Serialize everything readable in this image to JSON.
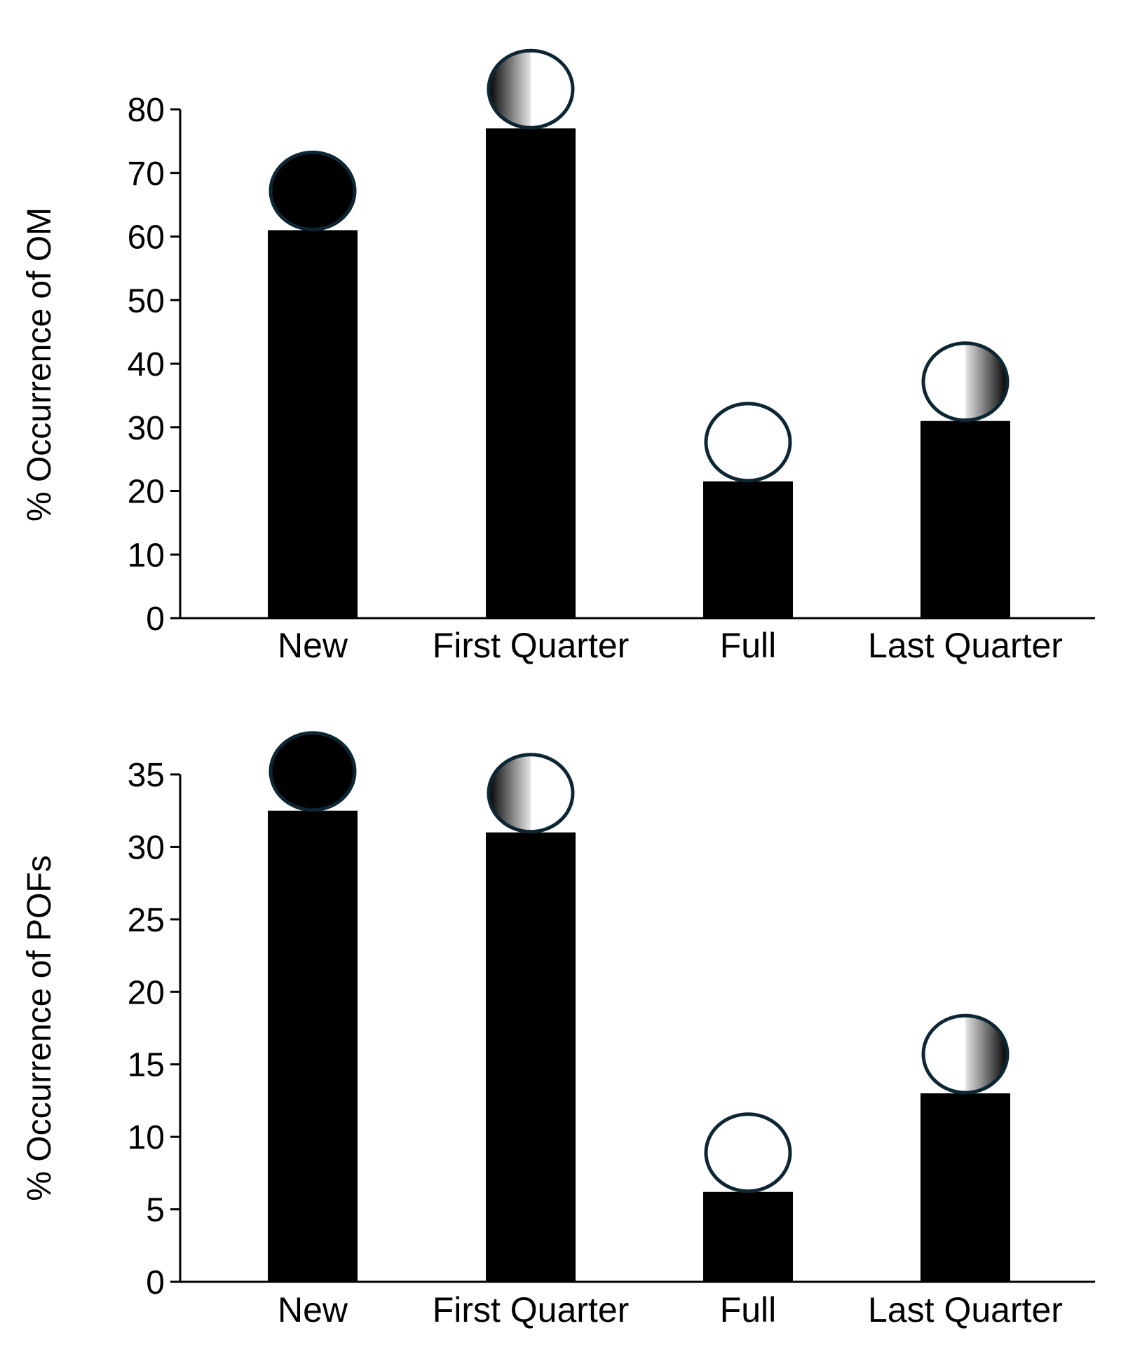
{
  "colors": {
    "bar": "#000000",
    "axis": "#000000",
    "moon_outline": "#0d2633",
    "moon_dark": "#000000",
    "moon_light": "#ffffff"
  },
  "chart_data": [
    {
      "type": "bar",
      "title": "",
      "xlabel": "",
      "ylabel": "% Occurrence of OM",
      "categories": [
        "New",
        "First Quarter",
        "Full",
        "Last Quarter"
      ],
      "values": [
        61,
        77,
        21.5,
        31
      ],
      "ylim": [
        0,
        80
      ],
      "yticks": [
        0,
        10,
        20,
        30,
        40,
        50,
        60,
        70,
        80
      ],
      "ytick_labels": [
        "0",
        "10",
        "20",
        "30",
        "40",
        "50",
        "60",
        "70",
        "80"
      ],
      "moon_icons": [
        "new-moon-icon",
        "first-quarter-moon-icon",
        "full-moon-icon",
        "last-quarter-moon-icon"
      ],
      "grid": false,
      "legend": "none"
    },
    {
      "type": "bar",
      "title": "",
      "xlabel": "",
      "ylabel": "% Occurrence of POFs",
      "categories": [
        "New",
        "First Quarter",
        "Full",
        "Last Quarter"
      ],
      "values": [
        32.5,
        31,
        6.2,
        13
      ],
      "ylim": [
        0,
        35
      ],
      "yticks": [
        0,
        5,
        10,
        15,
        20,
        25,
        30,
        35
      ],
      "ytick_labels": [
        "0",
        "5",
        "10",
        "15",
        "20",
        "25",
        "30",
        "35"
      ],
      "moon_icons": [
        "new-moon-icon",
        "first-quarter-moon-icon",
        "full-moon-icon",
        "last-quarter-moon-icon"
      ],
      "grid": false,
      "legend": "none"
    }
  ]
}
